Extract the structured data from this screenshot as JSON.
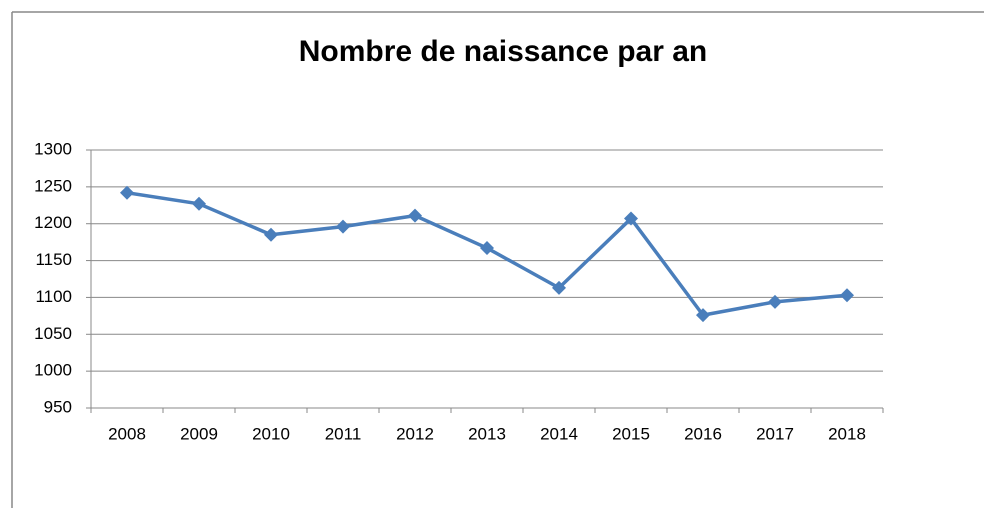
{
  "chart_data": {
    "type": "line",
    "title": "Nombre de naissance par an",
    "categories": [
      "2008",
      "2009",
      "2010",
      "2011",
      "2012",
      "2013",
      "2014",
      "2015",
      "2016",
      "2017",
      "2018"
    ],
    "series": [
      {
        "color": "#4a7ebb",
        "values": [
          1242,
          1227,
          1185,
          1196,
          1211,
          1167,
          1113,
          1207,
          1076,
          1094,
          1103
        ]
      }
    ],
    "ylim": [
      950,
      1300
    ],
    "yticks": [
      950,
      1000,
      1050,
      1100,
      1150,
      1200,
      1250,
      1300
    ],
    "grid": true
  }
}
